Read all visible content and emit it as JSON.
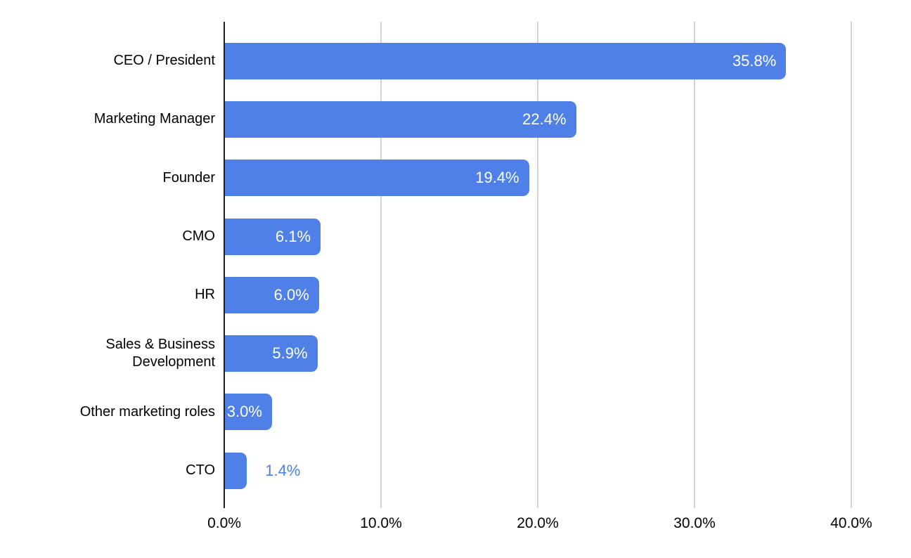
{
  "chart_data": {
    "type": "bar",
    "orientation": "horizontal",
    "title": "",
    "categories": [
      "CEO / President",
      "Marketing Manager",
      "Founder",
      "CMO",
      "HR",
      "Sales & Business Development",
      "Other marketing roles",
      "CTO"
    ],
    "values": [
      35.8,
      22.4,
      19.4,
      6.1,
      6.0,
      5.9,
      3.0,
      1.4
    ],
    "value_labels": [
      "35.8%",
      "22.4%",
      "19.4%",
      "6.1%",
      "6.0%",
      "5.9%",
      "3.0%",
      "1.4%"
    ],
    "x_ticks": [
      0,
      10,
      20,
      30,
      40
    ],
    "x_tick_labels": [
      "0.0%",
      "10.0%",
      "20.0%",
      "30.0%",
      "40.0%"
    ],
    "xlim": [
      0,
      43.4
    ],
    "grid": true,
    "legend": "none",
    "colors": {
      "bar": "#4e80e8",
      "value_inside": "#ffffff",
      "value_outside": "#4e80e8",
      "gridline": "#d3d3d3",
      "axis_line": "#1f1f1f",
      "label_text": "#000000",
      "background": "#ffffff"
    }
  }
}
